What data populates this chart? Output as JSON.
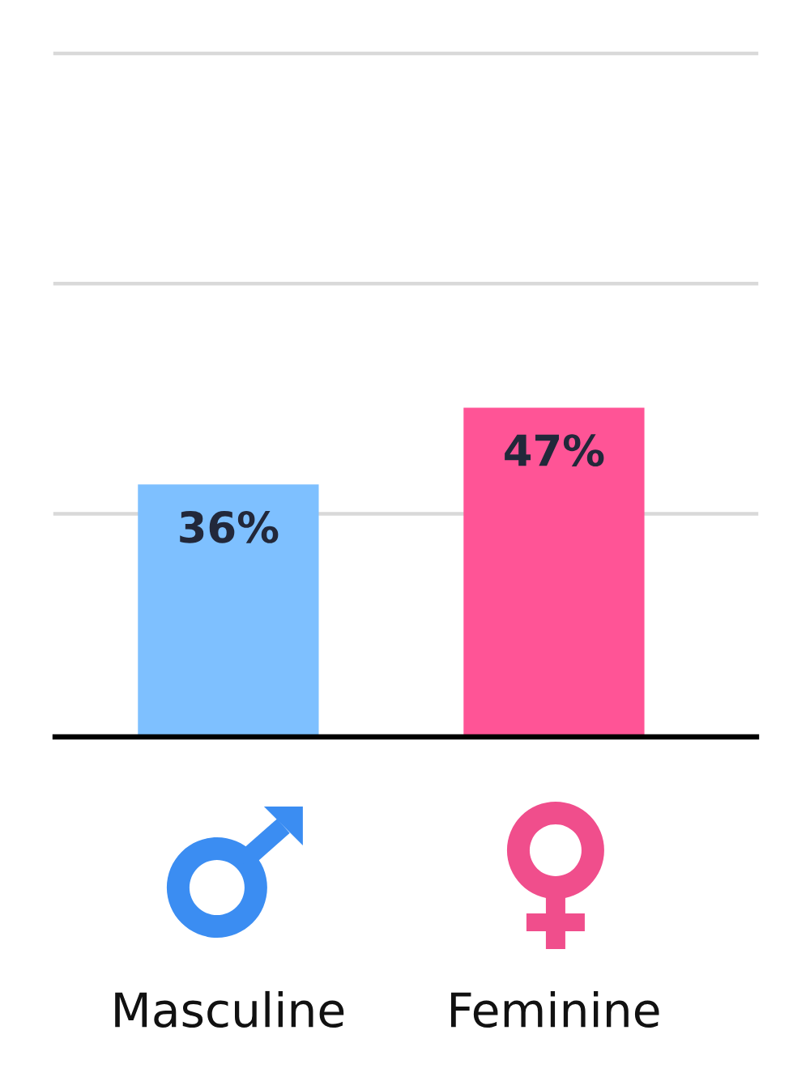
{
  "chart_data": {
    "type": "bar",
    "categories": [
      "Masculine",
      "Feminine"
    ],
    "values": [
      36,
      47
    ],
    "colors": [
      "#7ec0ff",
      "#ff5496"
    ],
    "value_labels": [
      "36%",
      "47%"
    ],
    "ylim": [
      0,
      98
    ],
    "yticks": [
      {
        "value": 32,
        "label": null
      },
      {
        "value": 65,
        "label": null
      },
      {
        "value": 98,
        "label": null
      }
    ],
    "grid": "y",
    "tick_labels": "x"
  }
}
